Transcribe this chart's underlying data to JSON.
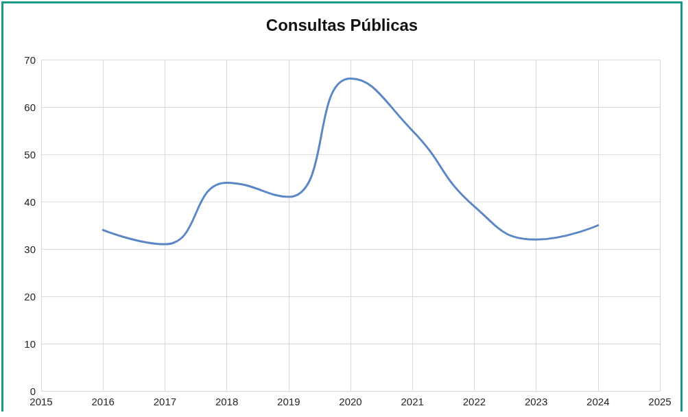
{
  "chart_data": {
    "type": "line",
    "title": "Consultas Públicas",
    "x": [
      2016,
      2017,
      2018,
      2019,
      2020,
      2021,
      2022,
      2023,
      2024
    ],
    "series": [
      {
        "color": "#5b87c5",
        "values": [
          34,
          31,
          44,
          41,
          66,
          55,
          39,
          32,
          35
        ]
      }
    ],
    "xlim": [
      2015,
      2025
    ],
    "xticks": [
      2015,
      2016,
      2017,
      2018,
      2019,
      2020,
      2021,
      2022,
      2023,
      2024,
      2025
    ],
    "ylim": [
      0,
      70
    ],
    "yticks": [
      0,
      10,
      20,
      30,
      40,
      50,
      60,
      70
    ],
    "grid": true,
    "marker": "none",
    "line_style": "solid"
  }
}
